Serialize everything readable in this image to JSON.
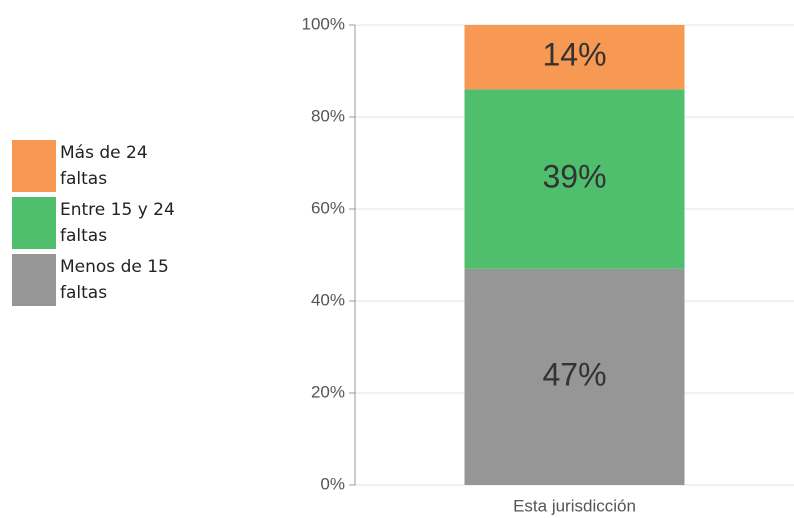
{
  "chart_data": {
    "type": "stacked_bar",
    "categories": [
      "Esta jurisdicción"
    ],
    "series": [
      {
        "name": "Menos de 15 faltas",
        "color": "#969696",
        "values": [
          47
        ],
        "value_labels": [
          "47%"
        ]
      },
      {
        "name": "Entre 15 y 24 faltas",
        "color": "#4fbf6e",
        "values": [
          39
        ],
        "value_labels": [
          "39%"
        ]
      },
      {
        "name": "Más de 24 faltas",
        "color": "#f79953",
        "values": [
          14
        ],
        "value_labels": [
          "14%"
        ]
      }
    ],
    "ylim": [
      0,
      100
    ],
    "yticks": [
      {
        "value": 0,
        "label": "0%"
      },
      {
        "value": 20,
        "label": "20%"
      },
      {
        "value": 40,
        "label": "40%"
      },
      {
        "value": 60,
        "label": "60%"
      },
      {
        "value": 80,
        "label": "80%"
      },
      {
        "value": 100,
        "label": "100%"
      }
    ],
    "grid": true
  }
}
